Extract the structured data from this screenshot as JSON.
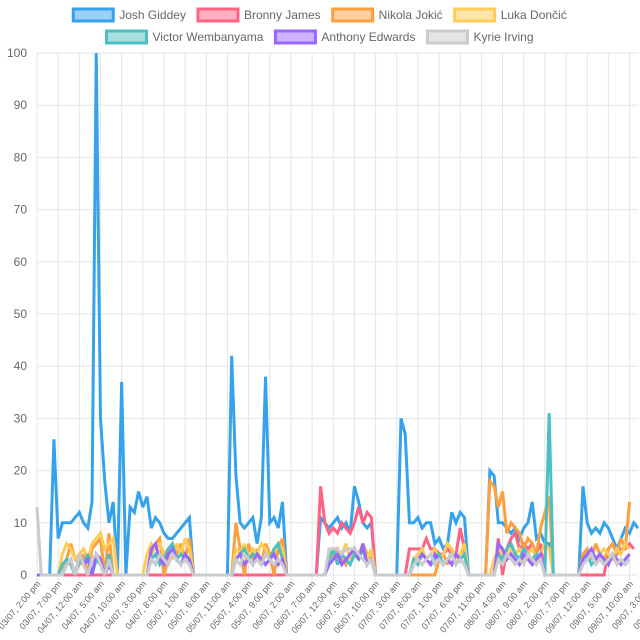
{
  "chart_data": {
    "type": "line",
    "title": "",
    "xlabel": "",
    "ylabel": "",
    "ylim": [
      0,
      100
    ],
    "y_ticks": [
      0,
      10,
      20,
      30,
      40,
      50,
      60,
      70,
      80,
      90,
      100
    ],
    "grid": true,
    "legend_position": "top",
    "x_tick_labels": [
      "03/07, 2:00 pm",
      "03/07, 7:00 pm",
      "04/07, 12:00 am",
      "04/07, 5:00 am",
      "04/07, 10:00 am",
      "04/07, 3:00 pm",
      "04/07, 8:00 pm",
      "05/07, 1:00 am",
      "05/07, 6:00 am",
      "05/07, 11:00 am",
      "05/07, 4:00 pm",
      "05/07, 9:00 pm",
      "06/07, 2:00 am",
      "06/07, 7:00 am",
      "06/07, 12:00 pm",
      "06/07, 5:00 pm",
      "06/07, 10:00 pm",
      "07/07, 3:00 am",
      "07/07, 8:00 am",
      "07/07, 1:00 pm",
      "07/07, 6:00 pm",
      "07/07, 11:00 pm",
      "08/07, 4:00 am",
      "08/07, 9:00 am",
      "08/07, 2:00 pm",
      "08/07, 7:00 pm",
      "09/07, 12:00 am",
      "09/07, 5:00 am",
      "09/07, 10:00 am",
      "09/07, 3:00 pm",
      "09/07, 8:00 pm",
      "10/07, 1:00 am",
      "10/07, 6:00 am",
      "10/07, 11:00 am"
    ],
    "points_per_tick": 5,
    "series": [
      {
        "name": "Josh Giddey",
        "color": "#36a2eb",
        "fill": "#9ad0f5",
        "values": [
          0,
          0,
          0,
          0,
          26,
          7,
          10,
          10,
          10,
          11,
          12,
          10,
          9,
          14,
          100,
          30,
          18,
          10,
          14,
          0,
          37,
          0,
          13,
          12,
          16,
          13,
          15,
          9,
          11,
          10,
          8,
          7,
          7,
          8,
          9,
          10,
          11,
          0,
          0,
          0,
          0,
          0,
          0,
          0,
          0,
          0,
          42,
          19,
          10,
          9,
          10,
          11,
          6,
          11,
          38,
          10,
          11,
          9,
          14,
          0,
          0,
          0,
          0,
          0,
          0,
          0,
          0,
          11,
          10,
          9,
          10,
          11,
          9,
          10,
          8,
          17,
          14,
          10,
          9,
          10,
          0,
          0,
          0,
          0,
          0,
          0,
          30,
          27,
          10,
          10,
          11,
          9,
          10,
          10,
          6,
          7,
          5,
          6,
          12,
          10,
          12,
          11,
          0,
          0,
          0,
          0,
          0,
          20,
          19,
          10,
          10,
          9,
          8,
          9,
          7,
          9,
          10,
          14,
          7,
          8,
          6,
          6,
          0,
          0,
          0,
          0,
          0,
          0,
          0,
          17,
          10,
          8,
          9,
          8,
          10,
          9,
          7,
          5,
          7,
          9,
          8,
          10,
          9
        ]
      },
      {
        "name": "Bronny James",
        "color": "#ff6384",
        "fill": "#ffb1c1",
        "values": [
          0,
          0,
          0,
          0,
          0,
          0,
          0,
          0,
          0,
          0,
          0,
          0,
          0,
          0,
          0,
          0,
          0,
          0,
          0,
          0,
          0,
          0,
          0,
          0,
          0,
          0,
          0,
          0,
          0,
          0,
          0,
          0,
          0,
          0,
          0,
          0,
          0,
          0,
          0,
          0,
          0,
          0,
          0,
          0,
          0,
          0,
          0,
          0,
          0,
          0,
          0,
          0,
          0,
          0,
          0,
          0,
          0,
          0,
          0,
          0,
          0,
          0,
          0,
          0,
          0,
          0,
          0,
          17,
          10,
          8,
          9,
          8,
          10,
          9,
          8,
          10,
          13,
          10,
          12,
          11,
          0,
          0,
          0,
          0,
          0,
          0,
          0,
          0,
          5,
          5,
          5,
          5,
          7,
          5,
          5,
          4,
          4,
          5,
          4,
          4,
          9,
          5,
          0,
          0,
          0,
          0,
          0,
          0,
          0,
          7,
          0,
          5,
          7,
          8,
          5,
          6,
          5,
          6,
          4,
          6,
          0,
          0,
          0,
          0,
          0,
          0,
          0,
          0,
          0,
          0,
          0,
          0,
          0,
          0,
          0,
          5,
          6,
          4,
          5,
          5,
          6,
          5
        ]
      },
      {
        "name": "Nikola Jokić",
        "color": "#ff9f40",
        "fill": "#ffcf9f",
        "values": [
          0,
          0,
          0,
          0,
          0,
          0,
          0,
          3,
          6,
          3,
          2,
          4,
          0,
          5,
          6,
          7,
          0,
          8,
          0,
          0,
          0,
          0,
          0,
          0,
          0,
          0,
          0,
          4,
          6,
          7,
          0,
          3,
          5,
          4,
          6,
          3,
          7,
          0,
          0,
          0,
          0,
          0,
          0,
          0,
          0,
          0,
          0,
          10,
          5,
          0,
          6,
          3,
          5,
          2,
          6,
          4,
          0,
          5,
          7,
          0,
          0,
          0,
          0,
          0,
          0,
          0,
          0,
          0,
          0,
          3,
          4,
          5,
          3,
          2,
          4,
          5,
          3,
          6,
          4,
          3,
          0,
          0,
          0,
          0,
          0,
          0,
          0,
          0,
          0,
          0,
          0,
          0,
          0,
          0,
          0,
          3,
          4,
          2,
          5,
          3,
          4,
          5,
          0,
          0,
          0,
          0,
          0,
          18,
          17,
          13,
          16,
          8,
          10,
          9,
          8,
          5,
          7,
          6,
          4,
          9,
          12,
          15,
          0,
          0,
          0,
          0,
          0,
          0,
          0,
          4,
          5,
          3,
          6,
          4,
          3,
          5,
          6,
          4,
          7,
          5,
          14
        ]
      },
      {
        "name": "Luka Dončić",
        "color": "#ffcd56",
        "fill": "#ffe6aa",
        "values": [
          0,
          0,
          0,
          0,
          0,
          0,
          4,
          6,
          5,
          3,
          4,
          5,
          3,
          6,
          7,
          8,
          5,
          6,
          7,
          0,
          0,
          0,
          0,
          0,
          0,
          0,
          4,
          6,
          5,
          6,
          4,
          5,
          3,
          6,
          4,
          7,
          5,
          0,
          0,
          0,
          0,
          0,
          0,
          0,
          0,
          0,
          0,
          5,
          4,
          6,
          3,
          5,
          4,
          6,
          5,
          3,
          4,
          6,
          5,
          0,
          0,
          0,
          0,
          0,
          0,
          0,
          0,
          0,
          0,
          4,
          5,
          3,
          4,
          6,
          3,
          5,
          4,
          6,
          3,
          5,
          0,
          0,
          0,
          0,
          0,
          0,
          0,
          0,
          0,
          3,
          4,
          5,
          3,
          4,
          5,
          3,
          4,
          6,
          5,
          3,
          4,
          6,
          0,
          0,
          0,
          0,
          0,
          0,
          3,
          5,
          4,
          3,
          5,
          4,
          5,
          3,
          4,
          5,
          3,
          4,
          6,
          5,
          0,
          0,
          0,
          0,
          0,
          0,
          0,
          3,
          4,
          5,
          3,
          4,
          5,
          4,
          3,
          5,
          4,
          6,
          5
        ]
      },
      {
        "name": "Victor Wembanyama",
        "color": "#4bc0c0",
        "fill": "#a5dfdf",
        "values": [
          0,
          0,
          0,
          0,
          0,
          0,
          2,
          3,
          2,
          0,
          3,
          2,
          4,
          0,
          3,
          2,
          0,
          4,
          0,
          0,
          0,
          0,
          0,
          0,
          0,
          0,
          0,
          3,
          4,
          2,
          3,
          5,
          6,
          3,
          4,
          3,
          2,
          0,
          0,
          0,
          0,
          0,
          0,
          0,
          0,
          0,
          0,
          3,
          4,
          5,
          3,
          4,
          3,
          2,
          4,
          3,
          5,
          6,
          3,
          0,
          0,
          0,
          0,
          0,
          0,
          0,
          0,
          0,
          0,
          3,
          5,
          2,
          4,
          3,
          2,
          4,
          3,
          5,
          2,
          3,
          0,
          0,
          0,
          0,
          0,
          0,
          0,
          0,
          0,
          3,
          2,
          4,
          3,
          2,
          3,
          4,
          2,
          3,
          4,
          2,
          3,
          4,
          0,
          0,
          0,
          0,
          0,
          0,
          0,
          4,
          3,
          5,
          6,
          4,
          3,
          5,
          4,
          3,
          4,
          3,
          0,
          31,
          0,
          0,
          0,
          0,
          0,
          0,
          0,
          3,
          4,
          2,
          3,
          4,
          3,
          2,
          4,
          3,
          2,
          3,
          4
        ]
      },
      {
        "name": "Anthony Edwards",
        "color": "#9966ff",
        "fill": "#ccb2ff",
        "values": [
          0,
          0,
          0,
          0,
          0,
          0,
          0,
          2,
          3,
          0,
          4,
          2,
          3,
          0,
          4,
          3,
          0,
          2,
          0,
          0,
          0,
          0,
          0,
          0,
          0,
          0,
          0,
          5,
          6,
          3,
          2,
          4,
          5,
          3,
          2,
          4,
          3,
          0,
          0,
          0,
          0,
          0,
          0,
          0,
          0,
          0,
          0,
          3,
          4,
          2,
          3,
          2,
          4,
          3,
          2,
          3,
          4,
          2,
          3,
          0,
          0,
          0,
          0,
          0,
          0,
          0,
          0,
          0,
          0,
          2,
          3,
          4,
          2,
          3,
          4,
          5,
          3,
          6,
          2,
          3,
          0,
          0,
          0,
          0,
          0,
          0,
          0,
          0,
          0,
          2,
          3,
          4,
          3,
          2,
          4,
          3,
          2,
          3,
          2,
          4,
          3,
          2,
          0,
          0,
          0,
          0,
          0,
          0,
          0,
          6,
          5,
          3,
          4,
          3,
          2,
          4,
          3,
          2,
          3,
          4,
          0,
          0,
          0,
          0,
          0,
          0,
          0,
          0,
          0,
          3,
          4,
          5,
          3,
          4,
          3,
          2,
          4,
          3,
          2,
          3,
          4
        ]
      },
      {
        "name": "Kyrie Irving",
        "color": "#c9cbcf",
        "fill": "#e4e5e7",
        "values": [
          13,
          0,
          0,
          0,
          0,
          0,
          0,
          2,
          3,
          0,
          4,
          2,
          0,
          3,
          4,
          2,
          0,
          3,
          0,
          0,
          0,
          0,
          0,
          0,
          0,
          0,
          0,
          3,
          2,
          4,
          3,
          2,
          4,
          3,
          2,
          3,
          2,
          0,
          0,
          0,
          0,
          0,
          0,
          0,
          0,
          0,
          0,
          3,
          2,
          4,
          3,
          2,
          3,
          2,
          4,
          3,
          2,
          3,
          2,
          0,
          0,
          0,
          0,
          0,
          0,
          0,
          0,
          0,
          0,
          5,
          5,
          5,
          4,
          5,
          5,
          5,
          4,
          3,
          2,
          3,
          0,
          0,
          0,
          0,
          0,
          0,
          0,
          0,
          0,
          2,
          3,
          2,
          3,
          4,
          2,
          3,
          2,
          3,
          4,
          2,
          3,
          2,
          0,
          0,
          0,
          0,
          0,
          0,
          0,
          3,
          2,
          4,
          3,
          2,
          3,
          2,
          4,
          3,
          2,
          3,
          0,
          0,
          0,
          0,
          0,
          0,
          0,
          0,
          0,
          2,
          3,
          4,
          2,
          3,
          2,
          3,
          4,
          2,
          3,
          2,
          3
        ]
      }
    ]
  }
}
